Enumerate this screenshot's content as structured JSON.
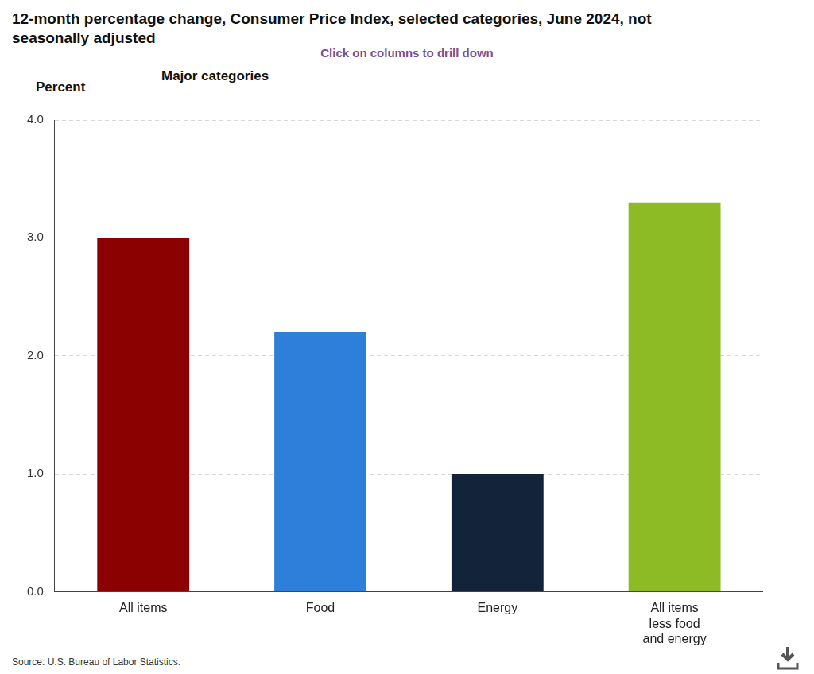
{
  "chart_data": {
    "type": "bar",
    "title": "12-month percentage change, Consumer Price Index, selected categories, June 2024, not seasonally adjusted",
    "subtitle": "Click on columns to drill down",
    "annotations": [
      "Major categories"
    ],
    "ylabel": "Percent",
    "source": "Source: U.S. Bureau of Labor Statistics.",
    "categories": [
      "All items",
      "Food",
      "Energy",
      "All items less food and energy"
    ],
    "values": [
      3.0,
      2.2,
      1.0,
      3.3
    ],
    "colors": [
      "#8b0000",
      "#2e7fd9",
      "#12233a",
      "#8dbb25"
    ],
    "ylim": [
      0,
      4
    ],
    "yticks": [
      {
        "value": 0,
        "label": "0.0"
      },
      {
        "value": 1,
        "label": "1.0"
      },
      {
        "value": 2,
        "label": "2.0"
      },
      {
        "value": 3,
        "label": "3.0"
      },
      {
        "value": 4,
        "label": "4.0"
      }
    ],
    "grid": true
  }
}
